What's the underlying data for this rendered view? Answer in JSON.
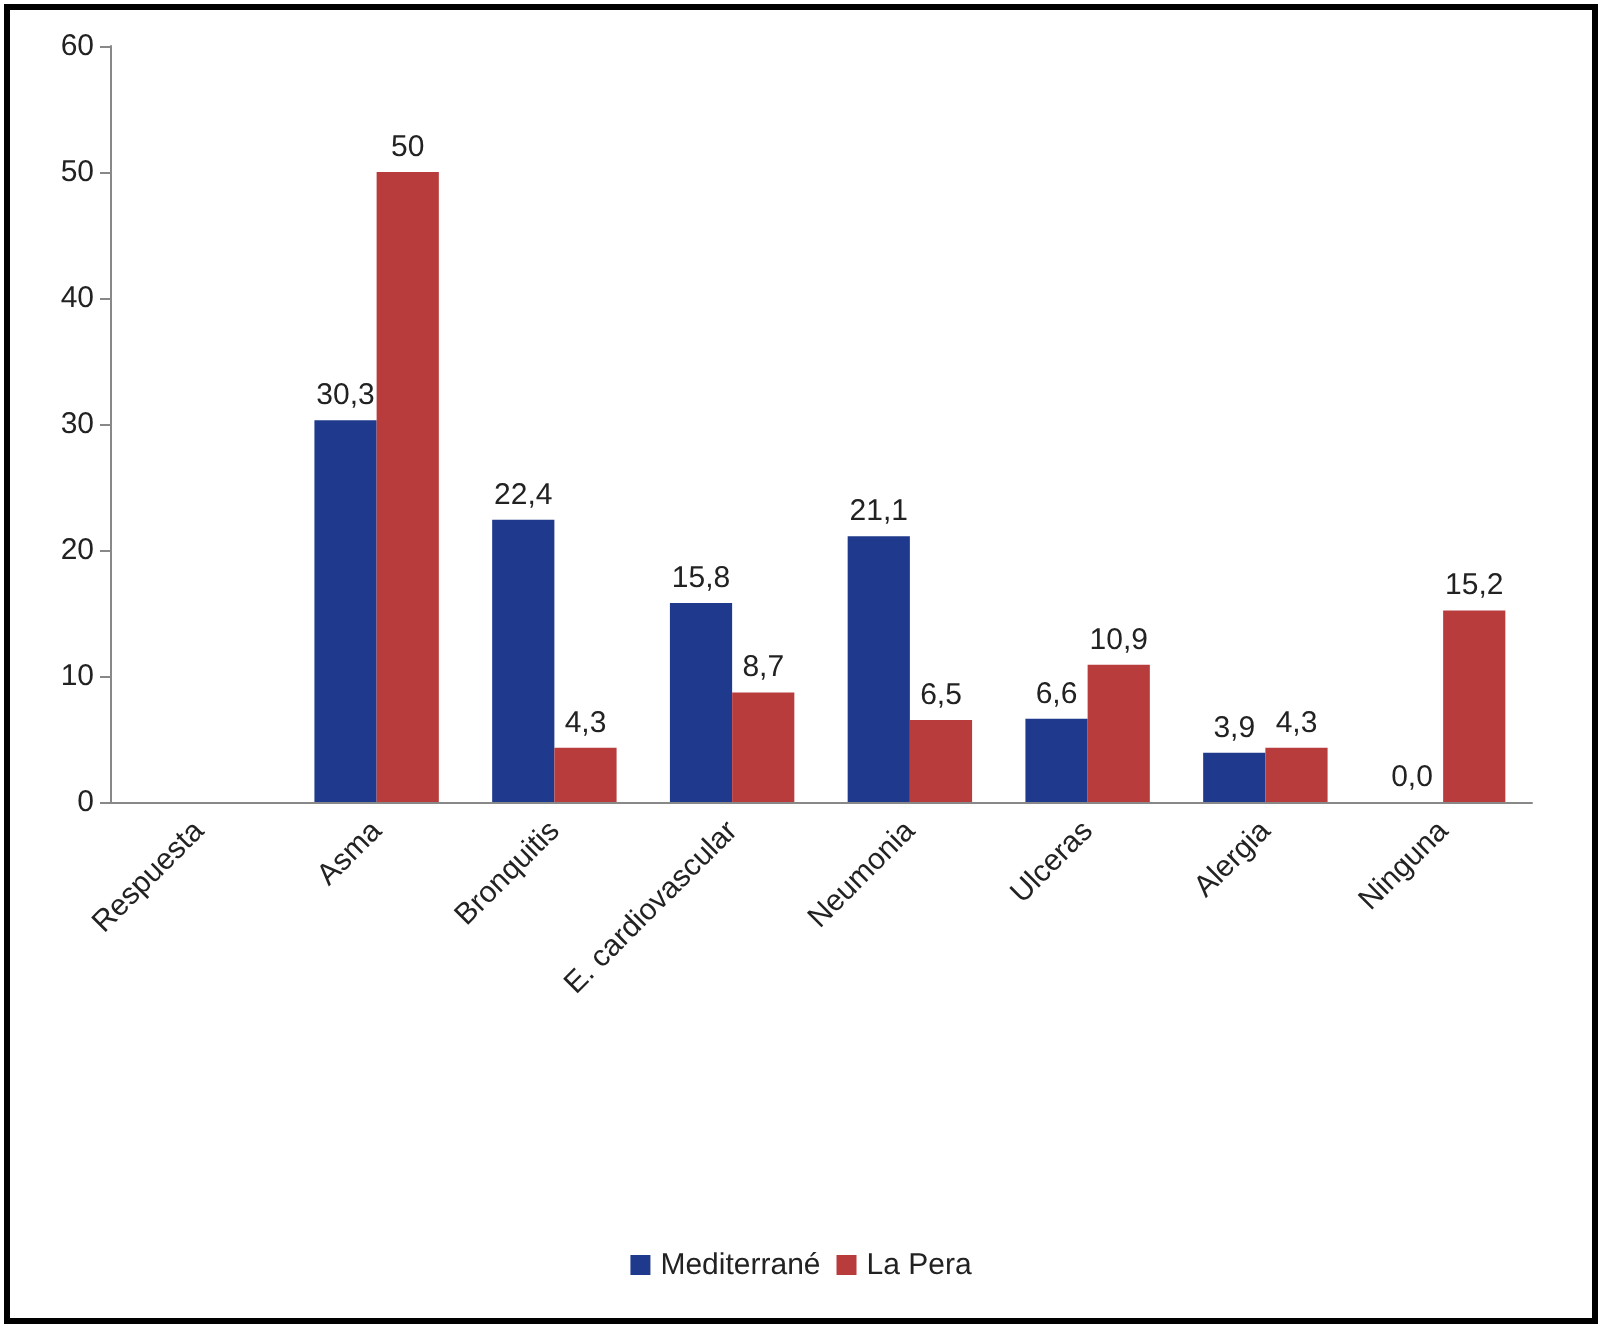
{
  "chart_data": {
    "type": "bar",
    "categories": [
      "Respuesta",
      "Asma",
      "Bronquitis",
      "E. cardiovascular",
      "Neumonia",
      "Ulceras",
      "Alergia",
      "Ninguna"
    ],
    "series": [
      {
        "name": "Mediterrané",
        "color": "#1f3a8c",
        "values": [
          null,
          30.3,
          22.4,
          15.8,
          21.1,
          6.6,
          3.9,
          0.0
        ],
        "value_labels": [
          null,
          "30,3",
          "22,4",
          "15,8",
          "21,1",
          "6,6",
          "3,9",
          "0,0"
        ]
      },
      {
        "name": "La Pera",
        "color": "#b83c3c",
        "values": [
          null,
          50,
          4.3,
          8.7,
          6.5,
          10.9,
          4.3,
          15.2
        ],
        "value_labels": [
          null,
          "50",
          "4,3",
          "8,7",
          "6,5",
          "10,9",
          "4,3",
          "15,2"
        ]
      }
    ],
    "ylim": [
      0,
      60
    ],
    "yticks": [
      0,
      10,
      20,
      30,
      40,
      50,
      60
    ],
    "grid": false,
    "legend": "bottom"
  }
}
